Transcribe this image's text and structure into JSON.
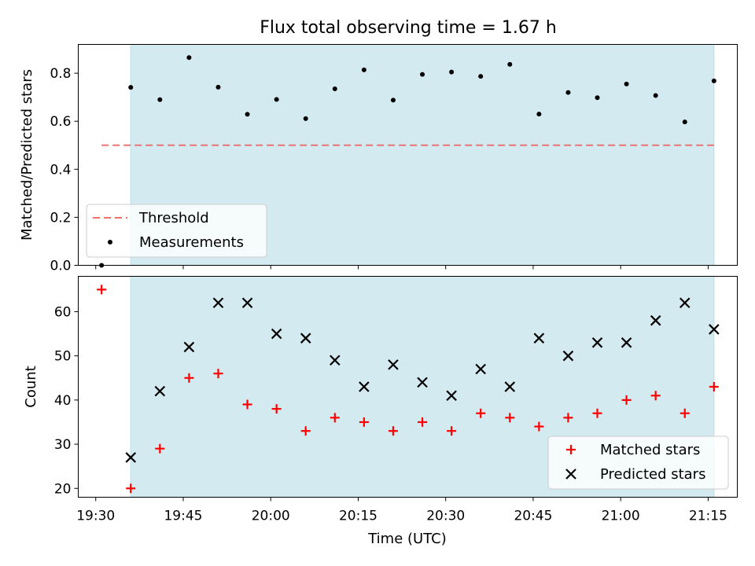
{
  "chart_data": [
    {
      "type": "scatter",
      "title": "Flux total observing time = 1.67 h",
      "xlabel": "",
      "ylabel": "Matched/Predicted stars",
      "ylim": [
        0.0,
        0.92
      ],
      "yticks": [
        0.0,
        0.2,
        0.4,
        0.6,
        0.8
      ],
      "ytick_labels": [
        "0.0",
        "0.2",
        "0.4",
        "0.6",
        "0.8"
      ],
      "shaded_x_range": [
        "19:36",
        "21:16"
      ],
      "legend_position": "lower-left",
      "legend": [
        "Threshold",
        "Measurements"
      ],
      "threshold": {
        "name": "Threshold",
        "y": 0.5,
        "x_range": [
          "19:31",
          "21:16"
        ],
        "style": "dashed",
        "color": "#f07070"
      },
      "series": [
        {
          "name": "Measurements",
          "marker": "dot",
          "color": "#000000",
          "x": [
            "19:31",
            "19:36",
            "19:41",
            "19:46",
            "19:51",
            "19:56",
            "20:01",
            "20:06",
            "20:11",
            "20:16",
            "20:21",
            "20:26",
            "20:31",
            "20:36",
            "20:41",
            "20:46",
            "20:51",
            "20:56",
            "21:01",
            "21:06",
            "21:11",
            "21:16"
          ],
          "y": [
            0.0,
            0.741,
            0.69,
            0.865,
            0.742,
            0.629,
            0.691,
            0.611,
            0.735,
            0.814,
            0.688,
            0.795,
            0.805,
            0.787,
            0.837,
            0.63,
            0.72,
            0.698,
            0.755,
            0.707,
            0.597,
            0.768
          ]
        }
      ]
    },
    {
      "type": "scatter",
      "title": "",
      "xlabel": "Time (UTC)",
      "ylabel": "Count",
      "ylim": [
        18,
        68
      ],
      "yticks": [
        20,
        30,
        40,
        50,
        60
      ],
      "ytick_labels": [
        "20",
        "30",
        "40",
        "50",
        "60"
      ],
      "x_range": [
        "19:27",
        "21:20"
      ],
      "xticks": [
        "19:30",
        "19:45",
        "20:00",
        "20:15",
        "20:30",
        "20:45",
        "21:00",
        "21:15"
      ],
      "shaded_x_range": [
        "19:36",
        "21:16"
      ],
      "legend_position": "lower-right",
      "legend": [
        "Matched stars",
        "Predicted stars"
      ],
      "series": [
        {
          "name": "Matched stars",
          "marker": "plus",
          "color": "#ff0000",
          "x": [
            "19:31",
            "19:36",
            "19:41",
            "19:46",
            "19:51",
            "19:56",
            "20:01",
            "20:06",
            "20:11",
            "20:16",
            "20:21",
            "20:26",
            "20:31",
            "20:36",
            "20:41",
            "20:46",
            "20:51",
            "20:56",
            "21:01",
            "21:06",
            "21:11",
            "21:16"
          ],
          "y": [
            65,
            20,
            29,
            45,
            46,
            39,
            38,
            33,
            36,
            35,
            33,
            35,
            33,
            37,
            36,
            34,
            36,
            37,
            40,
            41,
            37,
            43
          ]
        },
        {
          "name": "Predicted stars",
          "marker": "x",
          "color": "#000000",
          "x": [
            "19:36",
            "19:41",
            "19:46",
            "19:51",
            "19:56",
            "20:01",
            "20:06",
            "20:11",
            "20:16",
            "20:21",
            "20:26",
            "20:31",
            "20:36",
            "20:41",
            "20:46",
            "20:51",
            "20:56",
            "21:01",
            "21:06",
            "21:11",
            "21:16"
          ],
          "y": [
            27,
            42,
            52,
            62,
            62,
            55,
            54,
            49,
            43,
            48,
            44,
            41,
            47,
            43,
            54,
            50,
            53,
            53,
            58,
            62,
            56
          ]
        }
      ]
    }
  ],
  "colors": {
    "shade": "#d3eaf0",
    "shade_edge": "#bcdce6",
    "threshold": "#f07070",
    "matched": "#ff0000",
    "predicted": "#000000"
  }
}
